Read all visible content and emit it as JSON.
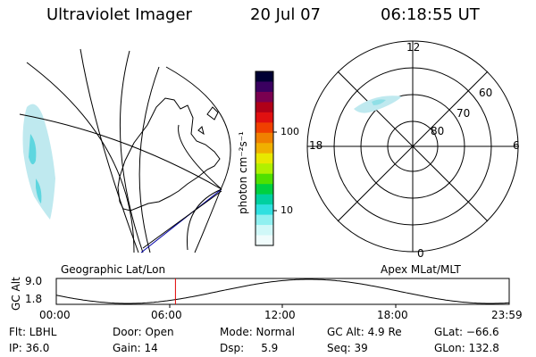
{
  "header": {
    "instrument": "Ultraviolet Imager",
    "date": "20 Jul 07",
    "time": "06:18:55 UT"
  },
  "colorbar": {
    "unit": "photon cm⁻²s⁻¹",
    "ticks": [
      "100",
      "10"
    ],
    "colors": [
      "#000033",
      "#3a0060",
      "#7a0050",
      "#b00018",
      "#e01010",
      "#f04000",
      "#f08000",
      "#f0b000",
      "#e8e800",
      "#b0f000",
      "#50e000",
      "#00d040",
      "#00d0a0",
      "#30e0e0",
      "#90f0f0",
      "#d0f8f8",
      "#f0fcfc"
    ]
  },
  "polar_plot": {
    "mlt_labels": {
      "top": "12",
      "left": "18",
      "right": "6",
      "bottom": "0"
    },
    "lat_labels": [
      "60",
      "70",
      "80"
    ]
  },
  "map_label": "Geographic Lat/Lon",
  "polar_label": "Apex MLat/MLT",
  "timeline": {
    "ylabel": "GC Alt",
    "y_ticks": [
      "9.0",
      "1.8"
    ],
    "x_ticks": [
      "00:00",
      "06:00",
      "12:00",
      "18:00",
      "23:59"
    ],
    "current_time_hours": 6.315
  },
  "info": {
    "flt": "Flt: LBHL",
    "ip": "IP: 36.0",
    "door": "Door: Open",
    "gain": "Gain: 14",
    "mode": "Mode: Normal",
    "dsp": "Dsp:     5.9",
    "gcalt": "GC Alt: 4.9 Re",
    "seq": "Seq: 39",
    "glat": "GLat: −66.6",
    "glon": "GLon: 132.8"
  }
}
